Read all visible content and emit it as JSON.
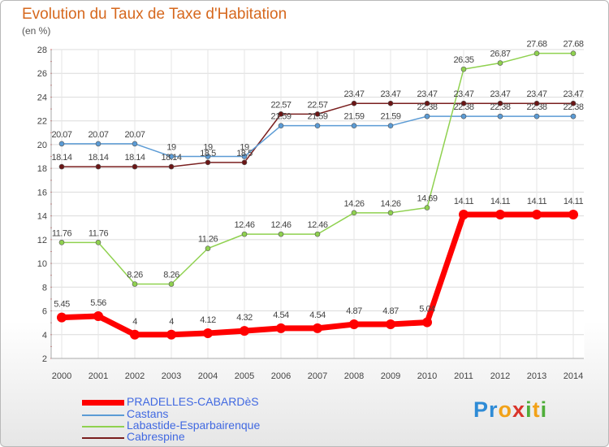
{
  "title": "Evolution du Taux de Taxe d'Habitation",
  "unit": "(en %)",
  "logo": {
    "text": "Proxiti",
    "letters": [
      "P",
      "r",
      "o",
      "x",
      "i",
      "t",
      "i"
    ],
    "colors": [
      "#2e8bd6",
      "#2e8bd6",
      "#f2a218",
      "#d9342b",
      "#4fae3a",
      "#f2a218",
      "#4fae3a"
    ]
  },
  "chart_data": {
    "type": "line",
    "x": [
      2000,
      2001,
      2002,
      2003,
      2004,
      2005,
      2006,
      2007,
      2008,
      2009,
      2010,
      2011,
      2012,
      2013,
      2014
    ],
    "ylim": [
      2,
      28
    ],
    "yticks": [
      2,
      4,
      6,
      8,
      10,
      12,
      14,
      16,
      18,
      20,
      22,
      24,
      26,
      28
    ],
    "grid": true,
    "legend_position": "bottom-left",
    "series": [
      {
        "name": "PRADELLES-CABARDèS",
        "color": "#ff0000",
        "width": 7,
        "marker": 6,
        "values": [
          5.45,
          5.56,
          4,
          4,
          4.12,
          4.32,
          4.54,
          4.54,
          4.87,
          4.87,
          5.04,
          14.11,
          14.11,
          14.11,
          14.11
        ],
        "labels": [
          "5.45",
          "5.56",
          "4",
          "4",
          "4.12",
          "4.32",
          "4.54",
          "4.54",
          "4.87",
          "4.87",
          "5.04",
          "14.11",
          "14.11",
          "14.11",
          "14.11"
        ]
      },
      {
        "name": "Castans",
        "color": "#5b9bd5",
        "width": 1.5,
        "marker": 3,
        "values": [
          20.07,
          20.07,
          20.07,
          19,
          19,
          19,
          21.59,
          21.59,
          21.59,
          21.59,
          22.38,
          22.38,
          22.38,
          22.38,
          22.38
        ],
        "labels": [
          "20.07",
          "20.07",
          "20.07",
          "19",
          "19",
          "19",
          "21.59",
          "21.59",
          "21.59",
          "21.59",
          "22.38",
          "22.38",
          "22.38",
          "22.38",
          "22.38"
        ]
      },
      {
        "name": "Labastide-Esparbairenque",
        "color": "#8fd14f",
        "width": 1.5,
        "marker": 3,
        "values": [
          11.76,
          11.76,
          8.26,
          8.26,
          11.26,
          12.46,
          12.46,
          12.46,
          14.26,
          14.26,
          14.69,
          26.35,
          26.87,
          27.68,
          27.68
        ],
        "labels": [
          "11.76",
          "11.76",
          "8.26",
          "8.26",
          "11.26",
          "12.46",
          "12.46",
          "12.46",
          "14.26",
          "14.26",
          "14.69",
          "26.35",
          "26.87",
          "27.68",
          "27.68"
        ]
      },
      {
        "name": "Cabrespine",
        "color": "#7a1f1f",
        "width": 1.5,
        "marker": 3,
        "values": [
          18.14,
          18.14,
          18.14,
          18.14,
          18.5,
          18.5,
          22.57,
          22.57,
          23.47,
          23.47,
          23.47,
          23.47,
          23.47,
          23.47,
          23.47
        ],
        "labels": [
          "18.14",
          "18.14",
          "18.14",
          "18.14",
          "18.5",
          "18.5",
          "22.57",
          "22.57",
          "23.47",
          "23.47",
          "23.47",
          "23.47",
          "23.47",
          "23.47",
          "23.47"
        ]
      }
    ]
  }
}
